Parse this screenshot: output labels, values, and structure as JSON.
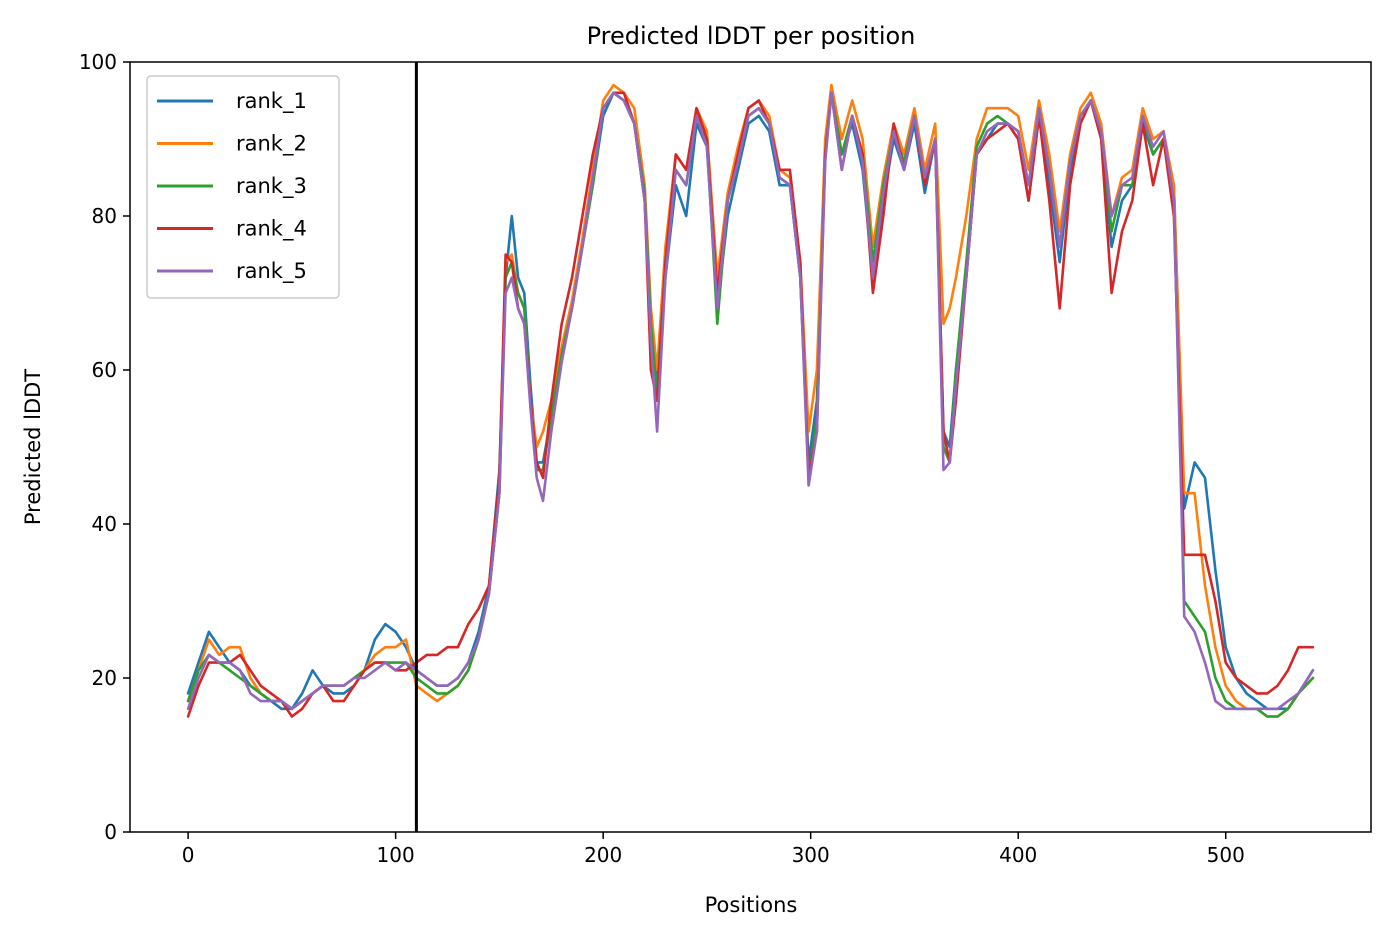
{
  "chart_data": {
    "type": "line",
    "title": "Predicted lDDT per position",
    "xlabel": "Positions",
    "ylabel": "Predicted lDDT",
    "xlim": [
      -28,
      570
    ],
    "ylim": [
      0,
      100
    ],
    "xticks": [
      0,
      100,
      200,
      300,
      400,
      500
    ],
    "yticks": [
      0,
      20,
      40,
      60,
      80,
      100
    ],
    "grid": false,
    "legend_position": "top-left",
    "vertical_line": {
      "x": 110,
      "color": "#000000"
    },
    "x": [
      0,
      5,
      10,
      15,
      20,
      25,
      30,
      35,
      40,
      45,
      50,
      55,
      60,
      65,
      70,
      75,
      80,
      85,
      90,
      95,
      100,
      105,
      110,
      115,
      120,
      125,
      130,
      135,
      140,
      145,
      150,
      153,
      156,
      159,
      162,
      165,
      168,
      171,
      175,
      180,
      185,
      190,
      195,
      200,
      205,
      210,
      215,
      220,
      223,
      226,
      230,
      235,
      240,
      245,
      250,
      255,
      260,
      265,
      270,
      275,
      280,
      285,
      290,
      295,
      299,
      303,
      307,
      310,
      315,
      320,
      325,
      330,
      335,
      340,
      345,
      350,
      355,
      360,
      364,
      367,
      370,
      375,
      380,
      385,
      390,
      395,
      400,
      405,
      410,
      415,
      420,
      425,
      430,
      435,
      440,
      445,
      450,
      455,
      460,
      465,
      470,
      475,
      480,
      485,
      490,
      495,
      500,
      505,
      510,
      515,
      520,
      525,
      530,
      535,
      542
    ],
    "series": [
      {
        "name": "rank_1",
        "color": "#1f77b4",
        "values": [
          18,
          22,
          26,
          24,
          22,
          21,
          19,
          18,
          17,
          16,
          16,
          18,
          21,
          19,
          18,
          18,
          19,
          21,
          25,
          27,
          26,
          24,
          21,
          20,
          19,
          19,
          20,
          22,
          26,
          32,
          47,
          72,
          80,
          72,
          70,
          58,
          48,
          48,
          54,
          62,
          68,
          76,
          84,
          93,
          96,
          95,
          92,
          82,
          66,
          58,
          72,
          84,
          80,
          92,
          89,
          68,
          80,
          86,
          92,
          93,
          91,
          84,
          84,
          72,
          48,
          56,
          88,
          96,
          88,
          92,
          86,
          72,
          82,
          90,
          86,
          92,
          83,
          90,
          52,
          50,
          60,
          72,
          88,
          90,
          92,
          92,
          90,
          82,
          93,
          84,
          74,
          86,
          93,
          95,
          90,
          76,
          82,
          84,
          92,
          88,
          90,
          84,
          42,
          48,
          46,
          34,
          24,
          20,
          18,
          17,
          16,
          16,
          16,
          18,
          21
        ]
      },
      {
        "name": "rank_2",
        "color": "#ff7f0e",
        "values": [
          17,
          21,
          25,
          23,
          24,
          24,
          20,
          18,
          17,
          17,
          16,
          17,
          18,
          19,
          19,
          19,
          20,
          21,
          23,
          24,
          24,
          25,
          19,
          18,
          17,
          18,
          19,
          21,
          25,
          31,
          44,
          74,
          75,
          70,
          68,
          56,
          50,
          52,
          56,
          63,
          69,
          77,
          86,
          95,
          97,
          96,
          94,
          84,
          68,
          60,
          76,
          88,
          86,
          94,
          91,
          72,
          83,
          89,
          94,
          95,
          93,
          86,
          85,
          74,
          52,
          60,
          90,
          97,
          90,
          95,
          90,
          76,
          85,
          92,
          88,
          94,
          86,
          92,
          66,
          68,
          72,
          80,
          90,
          94,
          94,
          94,
          93,
          86,
          95,
          88,
          78,
          88,
          94,
          96,
          92,
          80,
          85,
          86,
          94,
          90,
          91,
          84,
          44,
          44,
          32,
          24,
          19,
          17,
          16,
          16,
          15,
          15,
          16,
          18,
          20
        ]
      },
      {
        "name": "rank_3",
        "color": "#2ca02c",
        "values": [
          17,
          21,
          23,
          22,
          21,
          20,
          19,
          18,
          17,
          17,
          16,
          17,
          18,
          19,
          19,
          19,
          20,
          21,
          22,
          22,
          22,
          22,
          20,
          19,
          18,
          18,
          19,
          21,
          25,
          31,
          44,
          72,
          74,
          70,
          68,
          56,
          47,
          47,
          54,
          62,
          68,
          76,
          84,
          94,
          96,
          95,
          92,
          83,
          66,
          57,
          74,
          86,
          84,
          93,
          90,
          66,
          82,
          87,
          93,
          94,
          92,
          85,
          84,
          72,
          46,
          54,
          88,
          96,
          88,
          93,
          88,
          74,
          84,
          91,
          87,
          93,
          84,
          90,
          50,
          48,
          60,
          74,
          89,
          92,
          93,
          92,
          91,
          84,
          94,
          86,
          76,
          87,
          93,
          95,
          91,
          78,
          84,
          84,
          93,
          88,
          90,
          82,
          30,
          28,
          26,
          20,
          17,
          16,
          16,
          16,
          15,
          15,
          16,
          18,
          20
        ]
      },
      {
        "name": "rank_4",
        "color": "#d62728",
        "values": [
          15,
          19,
          22,
          22,
          22,
          23,
          21,
          19,
          18,
          17,
          15,
          16,
          18,
          19,
          17,
          17,
          19,
          21,
          22,
          22,
          21,
          21,
          22,
          23,
          23,
          24,
          24,
          27,
          29,
          32,
          46,
          75,
          74,
          68,
          66,
          56,
          48,
          46,
          56,
          66,
          72,
          80,
          88,
          94,
          96,
          96,
          92,
          82,
          60,
          56,
          74,
          88,
          86,
          94,
          90,
          70,
          82,
          88,
          94,
          95,
          92,
          86,
          86,
          74,
          46,
          52,
          88,
          96,
          86,
          93,
          88,
          70,
          80,
          92,
          86,
          93,
          84,
          90,
          52,
          48,
          56,
          72,
          88,
          90,
          91,
          92,
          90,
          82,
          93,
          82,
          68,
          84,
          92,
          95,
          90,
          70,
          78,
          82,
          92,
          84,
          90,
          80,
          36,
          36,
          36,
          30,
          22,
          20,
          19,
          18,
          18,
          19,
          21,
          24,
          24
        ]
      },
      {
        "name": "rank_5",
        "color": "#9467bd",
        "values": [
          16,
          20,
          23,
          22,
          22,
          21,
          18,
          17,
          17,
          17,
          16,
          17,
          18,
          19,
          19,
          19,
          20,
          20,
          21,
          22,
          21,
          22,
          21,
          20,
          19,
          19,
          20,
          22,
          25,
          31,
          44,
          70,
          72,
          68,
          66,
          55,
          46,
          43,
          52,
          61,
          68,
          76,
          85,
          94,
          96,
          95,
          92,
          82,
          64,
          52,
          72,
          86,
          84,
          93,
          89,
          68,
          82,
          87,
          93,
          94,
          92,
          85,
          84,
          72,
          45,
          52,
          87,
          96,
          86,
          93,
          87,
          72,
          83,
          91,
          86,
          93,
          85,
          90,
          47,
          48,
          58,
          72,
          88,
          91,
          92,
          92,
          91,
          84,
          94,
          86,
          76,
          87,
          93,
          95,
          91,
          80,
          84,
          85,
          93,
          89,
          91,
          82,
          28,
          26,
          22,
          17,
          16,
          16,
          16,
          16,
          16,
          16,
          17,
          18,
          21
        ]
      }
    ]
  }
}
